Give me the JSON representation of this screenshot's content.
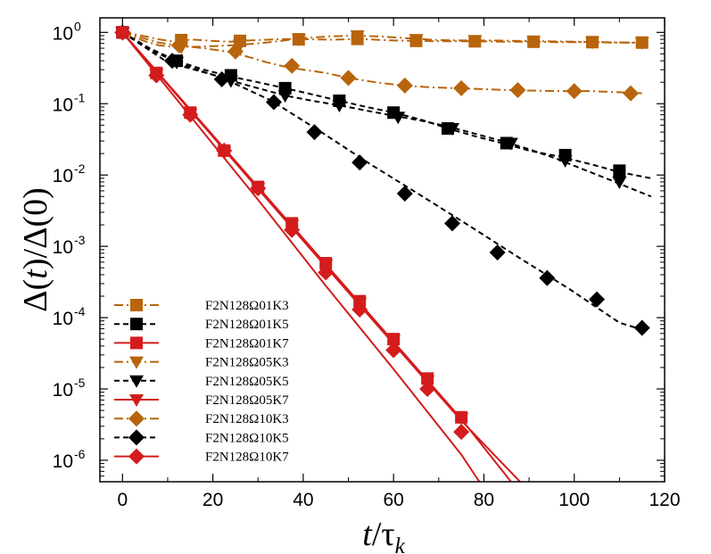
{
  "chart_data": {
    "type": "line",
    "title": "",
    "xlabel": {
      "italic": "t",
      "rest": "/τ",
      "sub": "k"
    },
    "ylabel": {
      "pre": "Δ(",
      "italic": "t",
      "post": ")/Δ(0)"
    },
    "yscale": "log",
    "xlim": [
      -5,
      120
    ],
    "ylim": [
      5e-07,
      1.6
    ],
    "grid": false,
    "legend_position": "lower-left",
    "x_ticks": [
      {
        "value": 0,
        "label": "0"
      },
      {
        "value": 20,
        "label": "20"
      },
      {
        "value": 40,
        "label": "40"
      },
      {
        "value": 60,
        "label": "60"
      },
      {
        "value": 80,
        "label": "80"
      },
      {
        "value": 100,
        "label": "100"
      },
      {
        "value": 120,
        "label": "120"
      }
    ],
    "y_ticks": [
      {
        "value": 1,
        "base": "10",
        "exp": "0"
      },
      {
        "value": 0.1,
        "base": "10",
        "exp": "-1"
      },
      {
        "value": 0.01,
        "base": "10",
        "exp": "-2"
      },
      {
        "value": 0.001,
        "base": "10",
        "exp": "-3"
      },
      {
        "value": 0.0001,
        "base": "10",
        "exp": "-4"
      },
      {
        "value": 1e-05,
        "base": "10",
        "exp": "-5"
      },
      {
        "value": 1e-06,
        "base": "10",
        "exp": "-6"
      }
    ],
    "colors": {
      "brown": "#b8640c",
      "black": "#000000",
      "red": "#d41c1c"
    },
    "series": [
      {
        "name": "F2N128Ω01K3",
        "color": "#b8640c",
        "dash": "dashdot",
        "marker": "square",
        "x": [
          0,
          2.5,
          5,
          8,
          11,
          13,
          16,
          20,
          24,
          26,
          30,
          34,
          38,
          42,
          46,
          50,
          52,
          56,
          60,
          64,
          65,
          70,
          75,
          78,
          85,
          90,
          91,
          96,
          100,
          104,
          108,
          112,
          115
        ],
        "y": [
          1.0,
          0.95,
          0.88,
          0.8,
          0.75,
          0.78,
          0.79,
          0.76,
          0.74,
          0.76,
          0.78,
          0.8,
          0.81,
          0.8,
          0.79,
          0.8,
          0.81,
          0.79,
          0.77,
          0.76,
          0.76,
          0.75,
          0.75,
          0.75,
          0.74,
          0.74,
          0.74,
          0.73,
          0.73,
          0.73,
          0.72,
          0.72,
          0.72
        ],
        "markers_x": [
          0,
          13,
          26,
          39,
          52,
          65,
          78,
          91,
          104,
          115
        ],
        "markers_y": [
          1.0,
          0.78,
          0.76,
          0.8,
          0.81,
          0.76,
          0.75,
          0.74,
          0.73,
          0.72
        ]
      },
      {
        "name": "F2N128Ω01K5",
        "color": "#000000",
        "dash": "dash",
        "marker": "square",
        "x": [
          0,
          6,
          12,
          18,
          24,
          30,
          36,
          42,
          48,
          54,
          60,
          66,
          72,
          78,
          84,
          90,
          97,
          104,
          110,
          117
        ],
        "y": [
          1.0,
          0.6,
          0.4,
          0.3,
          0.24,
          0.2,
          0.165,
          0.135,
          0.11,
          0.09,
          0.075,
          0.06,
          0.045,
          0.035,
          0.028,
          0.022,
          0.018,
          0.014,
          0.011,
          0.009
        ],
        "markers_x": [
          0,
          12,
          24,
          36,
          48,
          60,
          72,
          85,
          98,
          110
        ],
        "markers_y": [
          1.0,
          0.4,
          0.25,
          0.165,
          0.11,
          0.075,
          0.045,
          0.028,
          0.019,
          0.0115
        ]
      },
      {
        "name": "F2N128Ω01K7",
        "color": "#d41c1c",
        "dash": "solid",
        "marker": "square",
        "x": [
          0,
          15,
          30,
          45,
          60,
          75,
          86
        ],
        "y": [
          1.0,
          0.083,
          0.0068,
          0.00056,
          4.6e-05,
          3.8e-06,
          5e-07
        ],
        "markers_x": [
          0,
          7.5,
          15,
          22.5,
          30,
          37.5,
          45,
          52.5,
          60,
          67.5,
          75
        ],
        "markers_y": [
          1.0,
          0.27,
          0.075,
          0.022,
          0.0068,
          0.0021,
          0.00058,
          0.00017,
          5e-05,
          1.4e-05,
          4e-06
        ]
      },
      {
        "name": "F2N128Ω05K3",
        "color": "#b8640c",
        "dash": "dashdot",
        "marker": "triangle-down",
        "x": [
          0,
          2,
          5,
          8,
          12,
          17,
          22,
          26,
          30,
          35,
          40,
          46,
          52,
          58,
          64,
          70,
          76,
          82,
          88,
          94,
          100,
          106,
          112,
          116
        ],
        "y": [
          1.0,
          0.88,
          0.75,
          0.66,
          0.62,
          0.63,
          0.65,
          0.67,
          0.7,
          0.76,
          0.83,
          0.88,
          0.9,
          0.87,
          0.82,
          0.78,
          0.77,
          0.77,
          0.76,
          0.75,
          0.74,
          0.73,
          0.72,
          0.72
        ],
        "markers_x": [
          0,
          13,
          26,
          39,
          52,
          65,
          78,
          91,
          104,
          115
        ],
        "markers_y": [
          1.0,
          0.62,
          0.67,
          0.8,
          0.9,
          0.8,
          0.77,
          0.75,
          0.73,
          0.72
        ]
      },
      {
        "name": "F2N128Ω05K5",
        "color": "#000000",
        "dash": "dash",
        "marker": "triangle-down",
        "x": [
          0,
          6,
          12,
          18,
          24,
          30,
          36,
          42,
          48,
          54,
          60,
          66,
          72,
          78,
          84,
          90,
          96,
          102,
          108,
          117
        ],
        "y": [
          1.0,
          0.58,
          0.38,
          0.28,
          0.21,
          0.165,
          0.13,
          0.11,
          0.095,
          0.08,
          0.068,
          0.058,
          0.048,
          0.038,
          0.03,
          0.023,
          0.017,
          0.012,
          0.0085,
          0.005
        ],
        "markers_x": [
          0,
          12,
          24,
          36,
          48,
          61,
          73,
          86,
          98,
          110
        ],
        "markers_y": [
          1.0,
          0.38,
          0.21,
          0.13,
          0.095,
          0.065,
          0.045,
          0.028,
          0.016,
          0.008
        ]
      },
      {
        "name": "F2N128Ω05K7",
        "color": "#d41c1c",
        "dash": "solid",
        "marker": "triangle-down",
        "x": [
          0,
          15,
          30,
          45,
          60,
          75,
          88
        ],
        "y": [
          1.0,
          0.08,
          0.0064,
          0.00052,
          4.3e-05,
          3.6e-06,
          5e-07
        ],
        "markers_x": [
          0,
          7.5,
          15,
          22.5,
          30,
          37.5,
          45,
          52.5,
          60,
          67.5,
          75
        ],
        "markers_y": [
          1.0,
          0.26,
          0.072,
          0.021,
          0.0065,
          0.002,
          0.00055,
          0.00016,
          4.8e-05,
          1.3e-05,
          3.9e-06
        ]
      },
      {
        "name": "F2N128Ω10K3",
        "color": "#b8640c",
        "dash": "dashdot",
        "marker": "diamond",
        "x": [
          0,
          4,
          8,
          13,
          18,
          24,
          28,
          32,
          36,
          40,
          45,
          50,
          56,
          62,
          68,
          74,
          80,
          86,
          92,
          98,
          104,
          110,
          115
        ],
        "y": [
          1.0,
          0.85,
          0.72,
          0.65,
          0.6,
          0.53,
          0.45,
          0.38,
          0.33,
          0.3,
          0.27,
          0.23,
          0.2,
          0.18,
          0.17,
          0.165,
          0.16,
          0.155,
          0.152,
          0.15,
          0.15,
          0.145,
          0.14
        ],
        "markers_x": [
          0,
          12.5,
          25,
          37.5,
          50,
          62.5,
          75,
          87.5,
          100,
          112.5
        ],
        "markers_y": [
          1.0,
          0.66,
          0.54,
          0.34,
          0.23,
          0.18,
          0.165,
          0.155,
          0.15,
          0.14
        ]
      },
      {
        "name": "F2N128Ω10K5",
        "color": "#000000",
        "dash": "dash",
        "marker": "diamond",
        "x": [
          0,
          10,
          21.5,
          33,
          44,
          55,
          66,
          77,
          88,
          99,
          110,
          116
        ],
        "y": [
          1.0,
          0.38,
          0.24,
          0.11,
          0.04,
          0.014,
          0.0052,
          0.0019,
          0.00068,
          0.00025,
          8.5e-05,
          6.5e-05
        ],
        "markers_x": [
          0,
          11,
          22,
          33.5,
          42.5,
          52.5,
          62.5,
          73,
          83,
          94,
          105,
          115
        ],
        "markers_y": [
          1.0,
          0.4,
          0.22,
          0.105,
          0.04,
          0.015,
          0.0055,
          0.0021,
          0.00082,
          0.00036,
          0.00018,
          7.2e-05
        ]
      },
      {
        "name": "F2N128Ω10K7",
        "color": "#d41c1c",
        "dash": "solid",
        "marker": "diamond",
        "x": [
          0,
          15,
          30,
          45,
          60,
          75,
          79
        ],
        "y": [
          1.0,
          0.067,
          0.0045,
          0.00028,
          1.9e-05,
          1.2e-06,
          5e-07
        ],
        "markers_x": [
          0,
          7.5,
          15,
          22.5,
          30,
          37.5,
          45,
          52.5,
          60,
          67.5,
          75
        ],
        "markers_y": [
          1.0,
          0.25,
          0.07,
          0.022,
          0.0065,
          0.0017,
          0.00043,
          0.00013,
          3.5e-05,
          1e-05,
          2.5e-06
        ]
      }
    ]
  }
}
